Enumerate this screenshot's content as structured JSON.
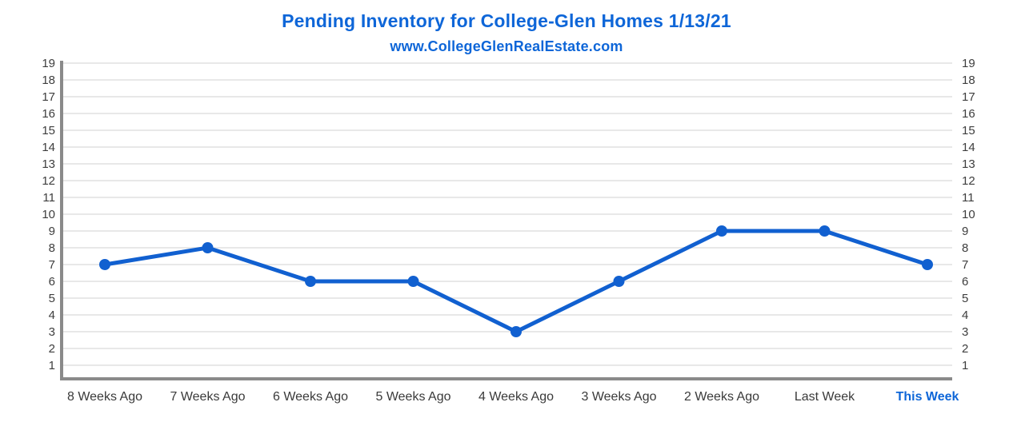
{
  "chart_data": {
    "type": "line",
    "title": "Pending Inventory for College-Glen Homes 1/13/21",
    "subtitle": "www.CollegeGlenRealEstate.com",
    "categories": [
      "8 Weeks Ago",
      "7 Weeks Ago",
      "6 Weeks Ago",
      "5 Weeks Ago",
      "4 Weeks Ago",
      "3 Weeks Ago",
      "2 Weeks Ago",
      "Last Week",
      "This Week"
    ],
    "values": [
      7,
      8,
      6,
      6,
      3,
      6,
      9,
      9,
      7
    ],
    "y_ticks": [
      1,
      2,
      3,
      4,
      5,
      6,
      7,
      8,
      9,
      10,
      11,
      12,
      13,
      14,
      15,
      16,
      17,
      18,
      19
    ],
    "ylim": [
      1,
      19
    ],
    "xlabel": "",
    "ylabel": "",
    "grid": true,
    "legend": "none",
    "y_axis_sides": "both",
    "x_axis_highlight": "This Week",
    "colors": {
      "title": "#0e66d8",
      "subtitle": "#0e66d8",
      "line": "#1160d0",
      "marker": "#1160d0",
      "highlight_label": "#0e66d8",
      "gridline": "#e8e8e8",
      "axis_line": "#8a8a8a",
      "y_tick_label": "#3d3d3d",
      "x_tick_label": "#3a3a3a",
      "background": "#ffffff"
    }
  }
}
